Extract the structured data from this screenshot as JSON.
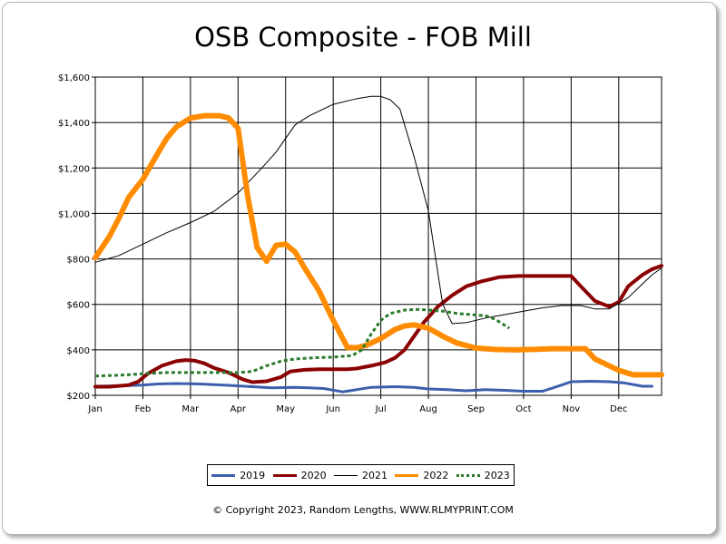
{
  "chart_data": {
    "type": "line",
    "title": "OSB Composite - FOB Mill",
    "xlabel": "",
    "ylabel": "",
    "x_ticks": [
      "Jan",
      "Feb",
      "Mar",
      "Apr",
      "May",
      "Jun",
      "Jul",
      "Aug",
      "Sep",
      "Oct",
      "Nov",
      "Dec"
    ],
    "x_range": [
      1,
      12.9
    ],
    "ylim": [
      200,
      1600
    ],
    "y_ticks": [
      200,
      400,
      600,
      800,
      1000,
      1200,
      1400,
      1600
    ],
    "y_tick_labels": [
      "$200",
      "$400",
      "$600",
      "$800",
      "$1,000",
      "$1,200",
      "$1,400",
      "$1,600"
    ],
    "grid": true,
    "legend_position": "bottom",
    "series": [
      {
        "name": "2019",
        "color": "#3b5fad",
        "width": 3,
        "dash": "",
        "x": [
          1,
          1.5,
          2,
          2.3,
          2.7,
          3.2,
          3.7,
          4.3,
          4.7,
          5.2,
          5.5,
          5.8,
          6.2,
          6.5,
          6.8,
          7.3,
          7.7,
          8,
          8.4,
          8.8,
          9.2,
          9.6,
          10,
          10.4,
          10.8,
          11,
          11.4,
          11.8,
          12.1,
          12.5,
          12.7
        ],
        "y": [
          240,
          242,
          245,
          250,
          252,
          250,
          245,
          238,
          233,
          235,
          233,
          230,
          215,
          225,
          235,
          238,
          235,
          228,
          225,
          220,
          225,
          222,
          218,
          218,
          245,
          260,
          262,
          260,
          255,
          240,
          240
        ]
      },
      {
        "name": "2020",
        "color": "#8b0000",
        "width": 4,
        "dash": "",
        "x": [
          1,
          1.3,
          1.7,
          1.9,
          2.1,
          2.4,
          2.7,
          2.9,
          3.1,
          3.3,
          3.5,
          3.8,
          4.1,
          4.3,
          4.6,
          4.9,
          5.1,
          5.4,
          5.7,
          6,
          6.3,
          6.5,
          6.8,
          7.1,
          7.3,
          7.5,
          7.7,
          7.9,
          8.2,
          8.5,
          8.8,
          9.1,
          9.5,
          9.9,
          10.2,
          10.5,
          10.8,
          11,
          11.2,
          11.5,
          11.8,
          12,
          12.2,
          12.5,
          12.7,
          12.9
        ],
        "y": [
          238,
          238,
          245,
          260,
          295,
          330,
          350,
          355,
          352,
          340,
          320,
          300,
          270,
          258,
          262,
          280,
          305,
          312,
          315,
          315,
          315,
          318,
          330,
          345,
          365,
          400,
          460,
          520,
          590,
          640,
          680,
          700,
          720,
          725,
          725,
          725,
          725,
          725,
          680,
          615,
          590,
          610,
          680,
          730,
          755,
          770
        ]
      },
      {
        "name": "2021",
        "color": "#000000",
        "width": 1,
        "dash": "",
        "x": [
          1,
          1.5,
          2,
          2.5,
          3,
          3.5,
          4,
          4.5,
          4.8,
          5,
          5.2,
          5.5,
          6,
          6.3,
          6.5,
          6.8,
          7,
          7.2,
          7.4,
          7.7,
          8,
          8.3,
          8.5,
          8.8,
          9.2,
          9.6,
          10,
          10.4,
          10.8,
          11.2,
          11.5,
          11.8,
          12.2,
          12.5,
          12.7,
          12.9
        ],
        "y": [
          785,
          815,
          865,
          915,
          960,
          1010,
          1090,
          1200,
          1270,
          1330,
          1390,
          1430,
          1480,
          1495,
          1505,
          1515,
          1515,
          1500,
          1460,
          1250,
          1010,
          600,
          515,
          520,
          540,
          555,
          570,
          585,
          595,
          595,
          580,
          580,
          630,
          690,
          730,
          760
        ]
      },
      {
        "name": "2022",
        "color": "#ff8c00",
        "width": 6,
        "dash": "",
        "x": [
          1,
          1.3,
          1.5,
          1.7,
          2,
          2.3,
          2.5,
          2.7,
          3,
          3.3,
          3.6,
          3.8,
          4,
          4.2,
          4.4,
          4.6,
          4.8,
          5,
          5.2,
          5.4,
          5.7,
          6,
          6.3,
          6.5,
          6.7,
          7,
          7.3,
          7.5,
          7.7,
          8,
          8.3,
          8.6,
          9,
          9.4,
          9.8,
          10.2,
          10.6,
          11,
          11.3,
          11.5,
          11.8,
          12,
          12.3,
          12.5,
          12.7,
          12.9
        ],
        "y": [
          805,
          900,
          980,
          1070,
          1150,
          1260,
          1330,
          1380,
          1420,
          1430,
          1430,
          1420,
          1375,
          1080,
          850,
          790,
          860,
          865,
          830,
          760,
          660,
          530,
          410,
          410,
          420,
          450,
          490,
          505,
          510,
          495,
          460,
          430,
          408,
          402,
          400,
          402,
          405,
          405,
          405,
          360,
          330,
          310,
          290,
          290,
          290,
          290
        ]
      },
      {
        "name": "2023",
        "color": "#2a7a2a",
        "width": 3,
        "dash": "4,3",
        "x": [
          1,
          1.5,
          2,
          2.5,
          3,
          3.5,
          4,
          4.3,
          4.6,
          4.9,
          5.2,
          5.6,
          6,
          6.4,
          6.6,
          6.8,
          7,
          7.2,
          7.5,
          7.8,
          8,
          8.3,
          8.6,
          8.9,
          9.2,
          9.4,
          9.7
        ],
        "y": [
          285,
          288,
          295,
          300,
          300,
          300,
          300,
          305,
          330,
          350,
          360,
          365,
          368,
          375,
          400,
          470,
          530,
          560,
          575,
          578,
          575,
          570,
          560,
          555,
          550,
          535,
          495
        ]
      }
    ]
  },
  "footer": {
    "copyright": "© Copyright 2023, Random Lengths, WWW.RLMYPRINT.COM"
  }
}
